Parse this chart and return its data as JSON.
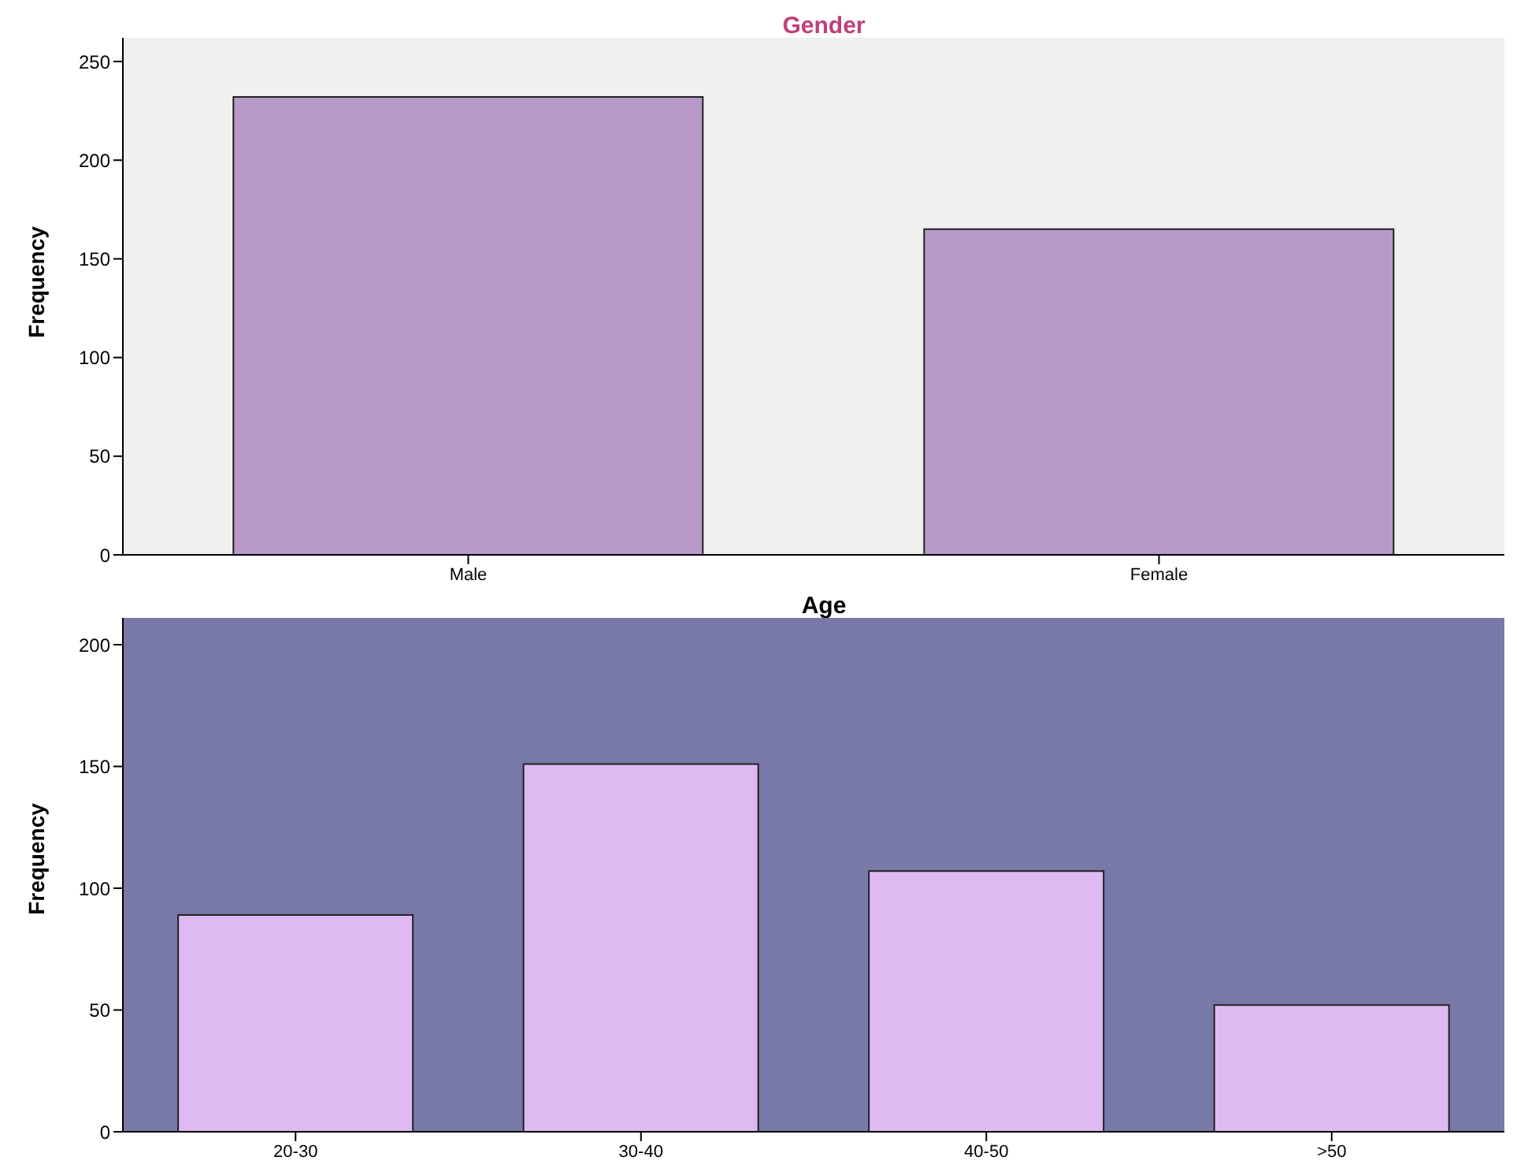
{
  "chart_data": [
    {
      "type": "bar",
      "title": "Gender",
      "ylabel": "Frequency",
      "categories": [
        "Male",
        "Female"
      ],
      "values": [
        232,
        165
      ],
      "color": "#b89ac8",
      "ylim": [
        0,
        262
      ],
      "yticks": [
        0,
        50,
        100,
        150,
        200,
        250
      ],
      "grid": false
    },
    {
      "type": "bar",
      "title": "Age",
      "ylabel": "Frequency",
      "categories": [
        "20-30",
        "30-40",
        "40-50",
        ">50"
      ],
      "values": [
        89,
        151,
        107,
        52
      ],
      "color": "#dfbaf2",
      "ylim": [
        0,
        211
      ],
      "yticks": [
        0,
        50,
        100,
        150,
        200
      ],
      "grid": false
    }
  ]
}
